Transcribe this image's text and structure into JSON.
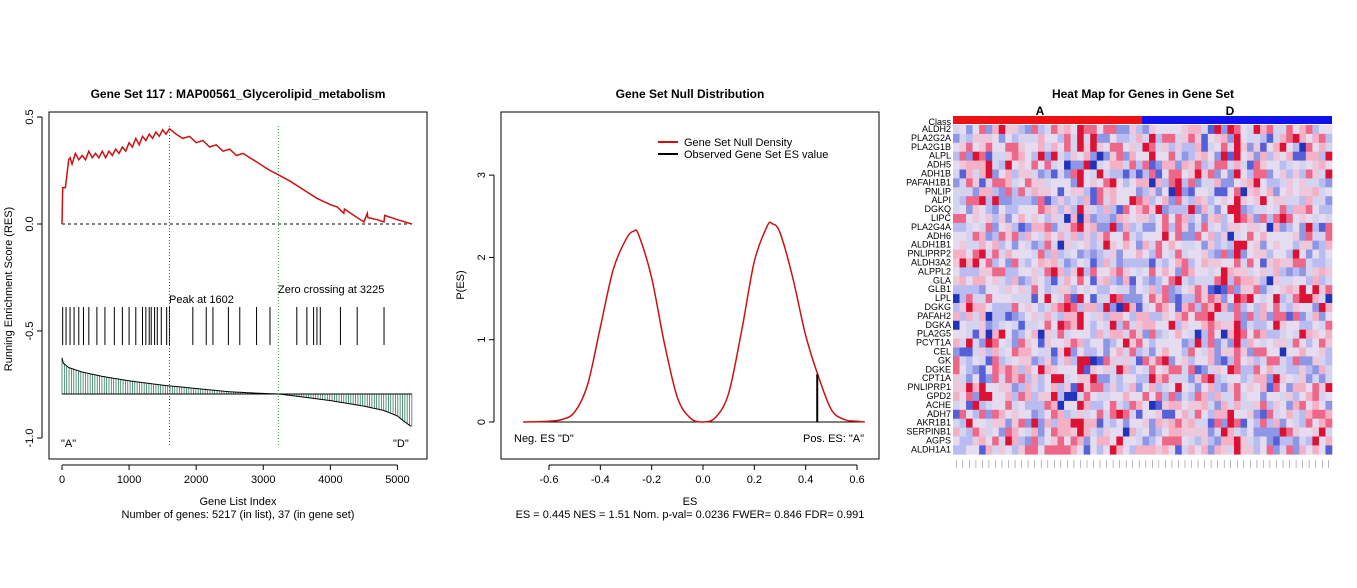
{
  "panel1": {
    "title": "Gene Set  117 : MAP00561_Glycerolipid_metabolism",
    "xlabel": "Gene List Index",
    "subtitle": "Number of genes: 5217 (in list), 37 (in gene set)",
    "ylabel": "Running Enrichment Score (RES)",
    "peak_label": "Peak at 1602",
    "zero_label": "Zero crossing at 3225",
    "left_corner": "\"A\"",
    "right_corner": "\"D\"",
    "x_ticks": [
      "0",
      "1000",
      "2000",
      "3000",
      "4000",
      "5000"
    ],
    "y_ticks": [
      "0.5",
      "0.0",
      "-0.5",
      "-1.0"
    ]
  },
  "panel2": {
    "title": "Gene Set Null Distribution",
    "xlabel": "ES",
    "subtitle": "ES = 0.445  NES = 1.51 Nom. p-val= 0.0236 FWER= 0.846 FDR= 0.991",
    "ylabel": "P(ES)",
    "legend": [
      "Gene Set Null Density",
      "Observed Gene Set ES value"
    ],
    "neg_label": "Neg. ES \"D\"",
    "pos_label": "Pos. ES: \"A\"",
    "x_ticks": [
      "-0.6",
      "-0.4",
      "-0.2",
      "0.0",
      "0.2",
      "0.4",
      "0.6"
    ],
    "y_ticks": [
      "0",
      "1",
      "2",
      "3"
    ]
  },
  "panel3": {
    "title": "Heat Map for Genes in Gene Set",
    "class_label": "Class",
    "class_a": "A",
    "class_d": "D",
    "genes": [
      "ALDH2",
      "PLA2G2A",
      "PLA2G1B",
      "ALPL",
      "ADH5",
      "ADH1B",
      "PAFAH1B1",
      "PNLIP",
      "ALPI",
      "DGKQ",
      "LIPC",
      "PLA2G4A",
      "ADH6",
      "ALDH1B1",
      "PNLIPRP2",
      "ALDH3A2",
      "ALPPL2",
      "GLA",
      "GLB1",
      "LPL",
      "DGKG",
      "PAFAH2",
      "DGKA",
      "PLA2G5",
      "PCYT1A",
      "CEL",
      "GK",
      "DGKE",
      "CPT1A",
      "PNLIPRP1",
      "GPD2",
      "ACHE",
      "ADH7",
      "AKR1B1",
      "SERPINB1",
      "AGPS",
      "ALDH1A1"
    ],
    "colors": {
      "class_a": "#ee1111",
      "class_d": "#1111ee"
    }
  },
  "chart_data": [
    {
      "type": "line",
      "title": "Gene Set  117 : MAP00561_Glycerolipid_metabolism",
      "xlabel": "Gene List Index",
      "ylabel": "Running Enrichment Score (RES)",
      "xlim": [
        0,
        5217
      ],
      "ylim": [
        -1.0,
        0.5
      ],
      "series": [
        {
          "name": "",
          "x": [
            0,
            10,
            50,
            100,
            120,
            150,
            200,
            250,
            300,
            350,
            400,
            450,
            500,
            550,
            600,
            650,
            700,
            750,
            800,
            850,
            900,
            950,
            1000,
            1050,
            1100,
            1150,
            1200,
            1250,
            1300,
            1350,
            1400,
            1450,
            1500,
            1550,
            1602,
            1700,
            1800,
            1900,
            2000,
            2100,
            2200,
            2300,
            2400,
            2500,
            2600,
            2700,
            2800,
            2900,
            3000,
            3100,
            3225,
            3400,
            3600,
            3800,
            4000,
            4100,
            4200,
            4210,
            4400,
            4500,
            4550,
            4560,
            4700,
            4800,
            4810,
            5000,
            5217
          ],
          "values": [
            0,
            0.17,
            0.17,
            0.3,
            0.31,
            0.28,
            0.33,
            0.3,
            0.32,
            0.3,
            0.34,
            0.31,
            0.33,
            0.31,
            0.34,
            0.31,
            0.34,
            0.32,
            0.35,
            0.33,
            0.36,
            0.34,
            0.38,
            0.36,
            0.4,
            0.37,
            0.41,
            0.39,
            0.42,
            0.4,
            0.43,
            0.41,
            0.44,
            0.42,
            0.445,
            0.42,
            0.4,
            0.41,
            0.38,
            0.39,
            0.36,
            0.37,
            0.34,
            0.35,
            0.32,
            0.33,
            0.31,
            0.29,
            0.27,
            0.25,
            0.23,
            0.2,
            0.16,
            0.12,
            0.09,
            0.08,
            0.05,
            0.07,
            0.03,
            0.01,
            0.05,
            0.03,
            0.02,
            0.01,
            0.04,
            0.02,
            0.0
          ]
        }
      ],
      "hits": [
        10,
        60,
        120,
        180,
        250,
        320,
        400,
        520,
        640,
        780,
        900,
        1000,
        1100,
        1200,
        1250,
        1300,
        1330,
        1380,
        1420,
        1480,
        1560,
        1602,
        1950,
        2150,
        2250,
        2480,
        2650,
        2900,
        3100,
        3500,
        3650,
        3750,
        3800,
        3850,
        4150,
        4400,
        4800
      ],
      "ranked_metric": {
        "x": [
          0,
          20,
          100,
          300,
          600,
          1000,
          1500,
          2000,
          2500,
          3000,
          3225,
          3500,
          4000,
          4500,
          4800,
          5000,
          5100,
          5217
        ],
        "values": [
          0.33,
          0.28,
          0.24,
          0.2,
          0.16,
          0.12,
          0.08,
          0.05,
          0.02,
          0.005,
          0.0,
          -0.02,
          -0.06,
          -0.11,
          -0.15,
          -0.2,
          -0.25,
          -0.3
        ]
      },
      "annotations": {
        "peak_index": 1602,
        "zero_crossing": 3225
      }
    },
    {
      "type": "line",
      "title": "Gene Set Null Distribution",
      "xlabel": "ES",
      "ylabel": "P(ES)",
      "xlim": [
        -0.75,
        0.65
      ],
      "ylim": [
        -0.5,
        3.5
      ],
      "series": [
        {
          "name": "Gene Set Null Density",
          "x": [
            -0.7,
            -0.6,
            -0.55,
            -0.5,
            -0.45,
            -0.4,
            -0.35,
            -0.3,
            -0.27,
            -0.25,
            -0.2,
            -0.15,
            -0.1,
            -0.05,
            0.0,
            0.05,
            0.1,
            0.15,
            0.2,
            0.25,
            0.27,
            0.3,
            0.35,
            0.4,
            0.45,
            0.5,
            0.55,
            0.6
          ],
          "values": [
            0,
            0.01,
            0.03,
            0.12,
            0.45,
            1.15,
            1.85,
            2.22,
            2.32,
            2.27,
            1.75,
            0.95,
            0.3,
            0.05,
            0.0,
            0.06,
            0.35,
            1.1,
            1.95,
            2.38,
            2.41,
            2.3,
            1.75,
            1.05,
            0.55,
            0.15,
            0.03,
            0.01
          ]
        },
        {
          "name": "Observed Gene Set ES value",
          "x": [
            0.445,
            0.445
          ],
          "values": [
            0,
            0.58
          ]
        }
      ]
    }
  ]
}
